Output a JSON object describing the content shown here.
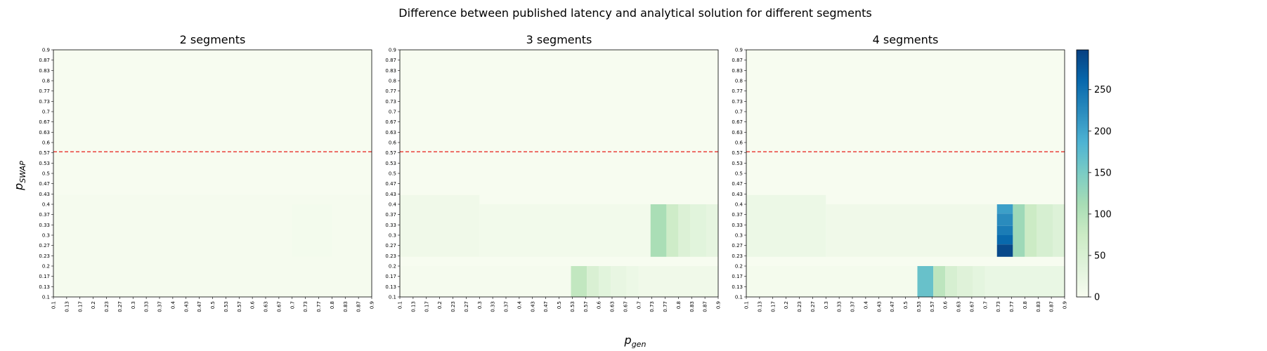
{
  "chart_data": {
    "type": "heatmap",
    "title": "Difference between published latency and analytical solution for different segments",
    "xlabel": "p_gen",
    "ylabel": "p_SWAP",
    "x_ticks": [
      "0.1",
      "0.13",
      "0.17",
      "0.2",
      "0.23",
      "0.27",
      "0.3",
      "0.33",
      "0.37",
      "0.4",
      "0.43",
      "0.47",
      "0.5",
      "0.53",
      "0.57",
      "0.6",
      "0.63",
      "0.67",
      "0.7",
      "0.73",
      "0.77",
      "0.8",
      "0.83",
      "0.87",
      "0.9"
    ],
    "y_ticks": [
      "0.1",
      "0.13",
      "0.17",
      "0.2",
      "0.23",
      "0.27",
      "0.3",
      "0.33",
      "0.37",
      "0.4",
      "0.43",
      "0.47",
      "0.5",
      "0.53",
      "0.57",
      "0.6",
      "0.63",
      "0.67",
      "0.7",
      "0.73",
      "0.77",
      "0.8",
      "0.83",
      "0.87",
      "0.9"
    ],
    "threshold_line": {
      "y": 0.57,
      "style": "dashed",
      "color": "#e8312a"
    },
    "colorbar": {
      "min": 0,
      "max": 298,
      "ticks": [
        0,
        50,
        100,
        150,
        200,
        250
      ],
      "colormap": "GnBu"
    },
    "panels": [
      {
        "title": "2 segments",
        "background": 0,
        "regions": [
          {
            "x": [
              0.1,
              0.9
            ],
            "y": [
              0.1,
              0.43
            ],
            "value": 4
          },
          {
            "x": [
              0.7,
              0.8
            ],
            "y": [
              0.23,
              0.4
            ],
            "value": 6
          }
        ]
      },
      {
        "title": "3 segments",
        "background": 0,
        "regions": [
          {
            "x": [
              0.1,
              0.3
            ],
            "y": [
              0.23,
              0.43
            ],
            "value": 12
          },
          {
            "x": [
              0.3,
              0.73
            ],
            "y": [
              0.23,
              0.4
            ],
            "value": 8
          },
          {
            "x": [
              0.1,
              0.53
            ],
            "y": [
              0.1,
              0.2
            ],
            "value": 3
          },
          {
            "x": [
              0.73,
              0.77
            ],
            "y": [
              0.23,
              0.4
            ],
            "value": 110
          },
          {
            "x": [
              0.77,
              0.8
            ],
            "y": [
              0.23,
              0.4
            ],
            "value": 70
          },
          {
            "x": [
              0.8,
              0.83
            ],
            "y": [
              0.23,
              0.4
            ],
            "value": 45
          },
          {
            "x": [
              0.83,
              0.87
            ],
            "y": [
              0.23,
              0.4
            ],
            "value": 35
          },
          {
            "x": [
              0.87,
              0.9
            ],
            "y": [
              0.23,
              0.4
            ],
            "value": 28
          },
          {
            "x": [
              0.53,
              0.57
            ],
            "y": [
              0.1,
              0.2
            ],
            "value": 85
          },
          {
            "x": [
              0.57,
              0.6
            ],
            "y": [
              0.1,
              0.2
            ],
            "value": 50
          },
          {
            "x": [
              0.6,
              0.63
            ],
            "y": [
              0.1,
              0.2
            ],
            "value": 35
          },
          {
            "x": [
              0.63,
              0.67
            ],
            "y": [
              0.1,
              0.2
            ],
            "value": 25
          },
          {
            "x": [
              0.67,
              0.7
            ],
            "y": [
              0.1,
              0.2
            ],
            "value": 18
          },
          {
            "x": [
              0.7,
              0.9
            ],
            "y": [
              0.1,
              0.2
            ],
            "value": 12
          }
        ]
      },
      {
        "title": "4 segments",
        "background": 0,
        "regions": [
          {
            "x": [
              0.1,
              0.3
            ],
            "y": [
              0.23,
              0.43
            ],
            "value": 18
          },
          {
            "x": [
              0.3,
              0.73
            ],
            "y": [
              0.23,
              0.4
            ],
            "value": 12
          },
          {
            "x": [
              0.1,
              0.53
            ],
            "y": [
              0.1,
              0.2
            ],
            "value": 5
          },
          {
            "x": [
              0.73,
              0.77
            ],
            "y": [
              0.37,
              0.4
            ],
            "value": 205
          },
          {
            "x": [
              0.73,
              0.77
            ],
            "y": [
              0.33,
              0.37
            ],
            "value": 225
          },
          {
            "x": [
              0.73,
              0.77
            ],
            "y": [
              0.3,
              0.33
            ],
            "value": 240
          },
          {
            "x": [
              0.73,
              0.77
            ],
            "y": [
              0.27,
              0.3
            ],
            "value": 260
          },
          {
            "x": [
              0.73,
              0.77
            ],
            "y": [
              0.23,
              0.27
            ],
            "value": 290
          },
          {
            "x": [
              0.77,
              0.8
            ],
            "y": [
              0.23,
              0.4
            ],
            "value": 120
          },
          {
            "x": [
              0.8,
              0.83
            ],
            "y": [
              0.23,
              0.4
            ],
            "value": 75
          },
          {
            "x": [
              0.83,
              0.87
            ],
            "y": [
              0.23,
              0.4
            ],
            "value": 55
          },
          {
            "x": [
              0.87,
              0.9
            ],
            "y": [
              0.23,
              0.4
            ],
            "value": 42
          },
          {
            "x": [
              0.53,
              0.57
            ],
            "y": [
              0.1,
              0.2
            ],
            "value": 165
          },
          {
            "x": [
              0.57,
              0.6
            ],
            "y": [
              0.1,
              0.2
            ],
            "value": 90
          },
          {
            "x": [
              0.6,
              0.63
            ],
            "y": [
              0.1,
              0.2
            ],
            "value": 55
          },
          {
            "x": [
              0.63,
              0.67
            ],
            "y": [
              0.1,
              0.2
            ],
            "value": 40
          },
          {
            "x": [
              0.67,
              0.7
            ],
            "y": [
              0.1,
              0.2
            ],
            "value": 30
          },
          {
            "x": [
              0.7,
              0.9
            ],
            "y": [
              0.1,
              0.2
            ],
            "value": 22
          }
        ]
      }
    ]
  }
}
